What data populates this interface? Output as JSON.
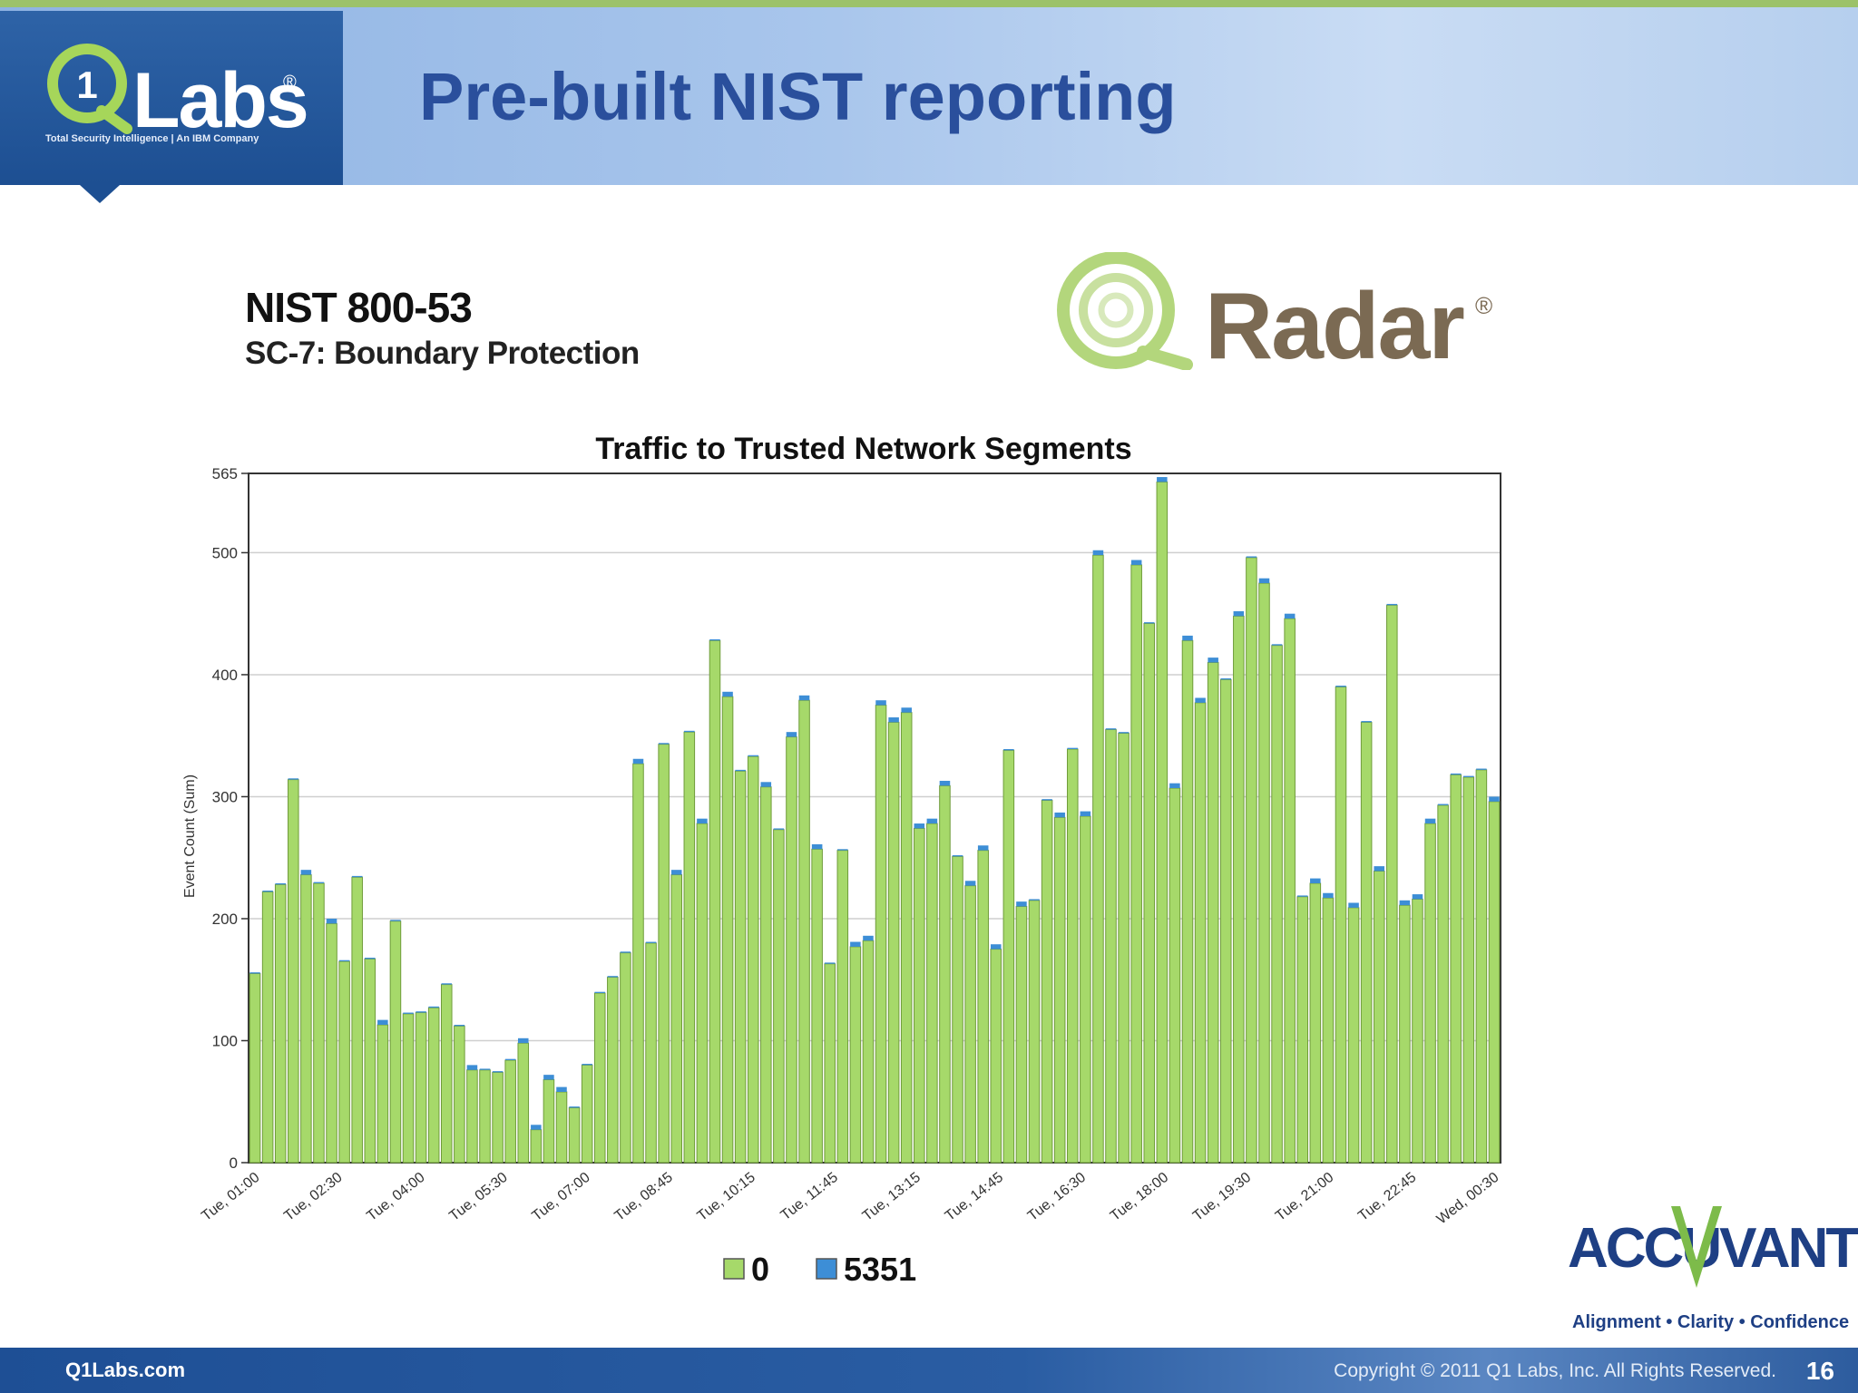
{
  "header": {
    "logo_text": "Labs",
    "logo_mark": "1",
    "logo_registered": "®",
    "logo_tagline": "Total Security Intelligence | An IBM Company",
    "title": "Pre-built NIST reporting"
  },
  "report": {
    "title": "NIST 800-53",
    "subtitle": "SC-7: Boundary Protection"
  },
  "brand": {
    "radar_text": "Radar",
    "radar_registered": "®",
    "accuvant_text": "ACCUVANT",
    "accuvant_tagline": "Alignment • Clarity • Confidence"
  },
  "chart_data": {
    "type": "bar",
    "stacked": true,
    "title": "Traffic to Trusted Network Segments",
    "ylabel": "Event Count (Sum)",
    "xlabel": "",
    "ylim": [
      0,
      565
    ],
    "yticks": [
      0,
      100,
      200,
      300,
      400,
      500,
      565
    ],
    "xtick_labels": [
      "Tue, 01:00",
      "Tue, 02:30",
      "Tue, 04:00",
      "Tue, 05:30",
      "Tue, 07:00",
      "Tue, 08:45",
      "Tue, 10:15",
      "Tue, 11:45",
      "Tue, 13:15",
      "Tue, 14:45",
      "Tue, 16:30",
      "Tue, 18:00",
      "Tue, 19:30",
      "Tue, 21:00",
      "Tue, 22:45",
      "Wed, 00:30"
    ],
    "grid": true,
    "legend_position": "bottom",
    "series": [
      {
        "name": "0",
        "color": "#a6d96a",
        "values": [
          155,
          222,
          228,
          314,
          236,
          229,
          196,
          165,
          234,
          167,
          113,
          198,
          122,
          123,
          127,
          146,
          112,
          76,
          76,
          74,
          84,
          98,
          27,
          68,
          58,
          45,
          80,
          139,
          152,
          172,
          327,
          180,
          343,
          236,
          353,
          278,
          428,
          382,
          321,
          333,
          308,
          273,
          349,
          379,
          257,
          163,
          256,
          177,
          182,
          375,
          361,
          369,
          274,
          278,
          309,
          251,
          227,
          256,
          175,
          338,
          210,
          215,
          297,
          283,
          339,
          284,
          498,
          355,
          352,
          490,
          442,
          558,
          307,
          428,
          377,
          410,
          396,
          448,
          496,
          475,
          424,
          446,
          218,
          229,
          217,
          390,
          209,
          361,
          239,
          457,
          211,
          216,
          278,
          293,
          318,
          316,
          322,
          296
        ]
      },
      {
        "name": "5351",
        "color": "#3d8ed6",
        "values": [
          1,
          1,
          1,
          1,
          4,
          1,
          4,
          1,
          1,
          1,
          4,
          1,
          1,
          1,
          1,
          1,
          1,
          4,
          1,
          1,
          1,
          4,
          4,
          4,
          4,
          1,
          1,
          1,
          1,
          1,
          4,
          1,
          1,
          4,
          1,
          4,
          1,
          4,
          1,
          1,
          4,
          1,
          4,
          4,
          4,
          1,
          1,
          4,
          4,
          4,
          4,
          4,
          4,
          4,
          4,
          1,
          4,
          4,
          4,
          1,
          4,
          1,
          1,
          4,
          1,
          4,
          4,
          1,
          1,
          4,
          1,
          4,
          4,
          4,
          4,
          4,
          1,
          4,
          1,
          4,
          1,
          4,
          1,
          4,
          4,
          1,
          4,
          1,
          4,
          1,
          4,
          4,
          4,
          1,
          1,
          1,
          1,
          4
        ]
      }
    ]
  },
  "footer": {
    "left_text": "Q1Labs.com",
    "copyright": "Copyright © 2011 Q1 Labs, Inc. All Rights Reserved.",
    "page_number": "16"
  }
}
